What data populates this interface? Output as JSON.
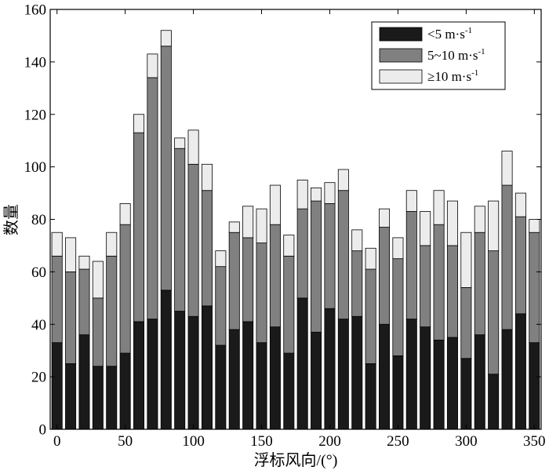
{
  "chart_data": {
    "type": "bar",
    "stacked": true,
    "xlabel": "浮标风向/(°)",
    "ylabel": "数量",
    "xlim": [
      -5,
      355
    ],
    "ylim": [
      0,
      160
    ],
    "x_ticks": [
      "0",
      "50",
      "100",
      "150",
      "200",
      "250",
      "300",
      "350"
    ],
    "y_ticks": [
      "0",
      "20",
      "40",
      "60",
      "80",
      "100",
      "120",
      "140",
      "160"
    ],
    "legend_placement": "top-right",
    "grid": false,
    "x": [
      0,
      10,
      20,
      30,
      40,
      50,
      60,
      70,
      80,
      90,
      100,
      110,
      120,
      130,
      140,
      150,
      160,
      170,
      180,
      190,
      200,
      210,
      220,
      230,
      240,
      250,
      260,
      270,
      280,
      290,
      300,
      310,
      320,
      330,
      340,
      350
    ],
    "series": [
      {
        "name": "<5 m·s-1",
        "label_main": "<5 m·s",
        "label_sup": "-1",
        "color": "#1a1a1a",
        "values": [
          33,
          25,
          36,
          24,
          24,
          29,
          41,
          42,
          53,
          45,
          43,
          47,
          32,
          38,
          41,
          33,
          39,
          29,
          50,
          37,
          46,
          42,
          43,
          25,
          40,
          28,
          42,
          39,
          34,
          35,
          27,
          36,
          21,
          38,
          44,
          33
        ]
      },
      {
        "name": "5~10 m·s-1",
        "label_main": "5~10 m·s",
        "label_sup": "-1",
        "color": "#808080",
        "values": [
          33,
          35,
          25,
          26,
          42,
          49,
          72,
          92,
          93,
          62,
          58,
          44,
          30,
          37,
          32,
          38,
          39,
          37,
          34,
          50,
          40,
          49,
          25,
          36,
          37,
          37,
          41,
          31,
          44,
          35,
          27,
          39,
          47,
          55,
          37,
          42
        ]
      },
      {
        "name": "≥10 m·s-1",
        "label_main": "≥10 m·s",
        "label_sup": "-1",
        "color": "#ececec",
        "values": [
          9,
          13,
          5,
          14,
          9,
          8,
          7,
          9,
          6,
          4,
          13,
          10,
          6,
          4,
          12,
          13,
          15,
          8,
          11,
          5,
          8,
          8,
          8,
          8,
          7,
          8,
          8,
          13,
          13,
          17,
          21,
          10,
          19,
          13,
          9,
          5
        ]
      }
    ]
  }
}
